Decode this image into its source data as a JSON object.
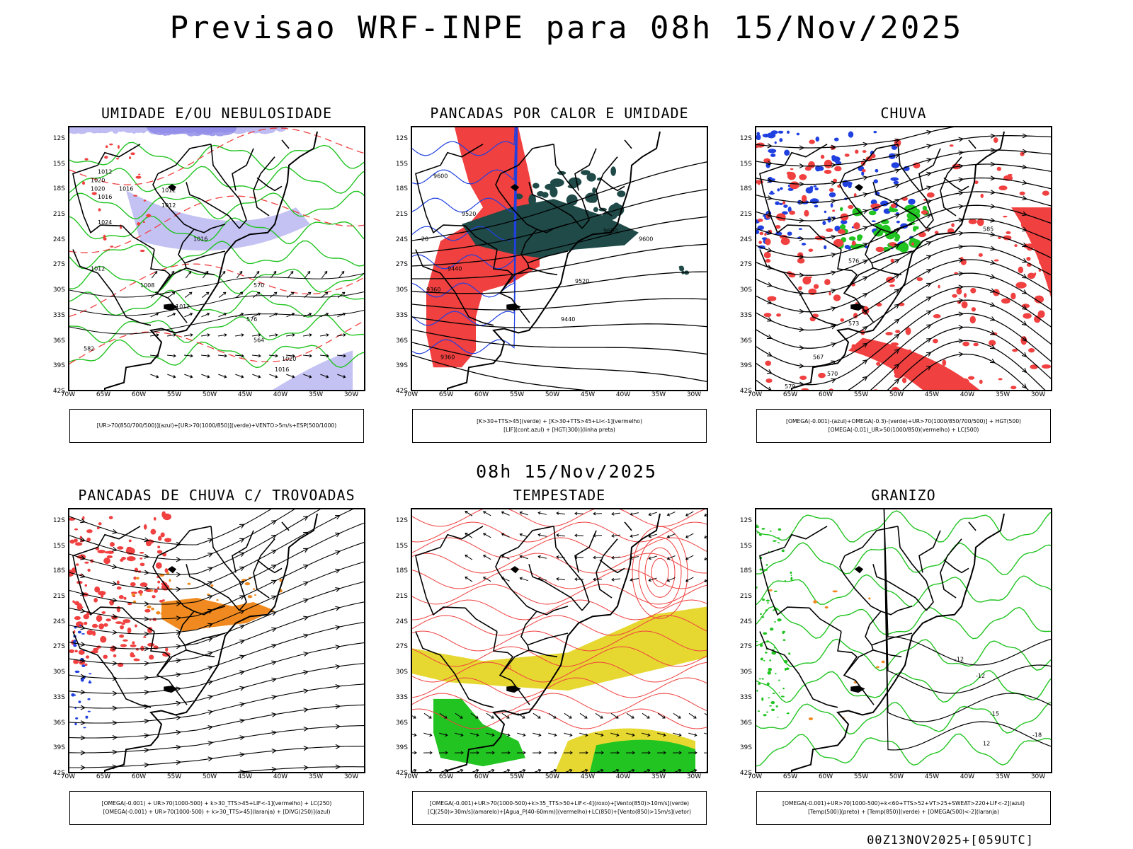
{
  "main_title": "Previsao WRF-INPE  para 08h 15/Nov/2025",
  "mid_title": "08h 15/Nov/2025",
  "footer": "00Z13NOV2025+[059UTC]",
  "lat_ticks": [
    "12S",
    "15S",
    "18S",
    "21S",
    "24S",
    "27S",
    "30S",
    "33S",
    "36S",
    "39S",
    "42S"
  ],
  "lon_ticks": [
    "70W",
    "65W",
    "60W",
    "55W",
    "50W",
    "45W",
    "40W",
    "35W",
    "30W"
  ],
  "panels": [
    {
      "id": "umidade",
      "title": "UMIDADE E/OU NEBULOSIDADE",
      "legend": [
        "[UR>70(850/700/500)](azul)+[UR>70(1000/850)](verde)+VENTO>5m/s+ESP(500/1000)"
      ],
      "contour_labels": [
        "1012",
        "1016",
        "1020",
        "1016",
        "1012",
        "1024",
        "1020",
        "1012",
        "1016",
        "1012",
        "1008",
        "1012",
        "576",
        "570",
        "564",
        "582",
        "1020",
        "1016"
      ]
    },
    {
      "id": "pancadas-calor",
      "title": "PANCADAS POR CALOR E UMIDADE",
      "legend": [
        "[K>30+TTS>45](verde) + [K>30+TTS>45+LI<-1](vermelho)",
        "[LIF](cont.azul) + [HGT(300)](linha preta)"
      ],
      "contour_labels": [
        "9600",
        "9520",
        "9600",
        "9440",
        "9360",
        "9520",
        "9600",
        "9440",
        "9360",
        "-20"
      ]
    },
    {
      "id": "chuva",
      "title": "CHUVA",
      "legend": [
        "[OMEGA(-0.001)-(azul)+OMEGA(-0.3)-(verde)+UR>70(1000/850/700/500)] + HGT(500)",
        "[OMEGA(-0.01)_UR>50(1000/850)(vermelho) + LC(500)"
      ],
      "contour_labels": [
        "585",
        "576",
        "573",
        "570",
        "567",
        "579"
      ]
    },
    {
      "id": "pancadas-trovoadas",
      "title": "PANCADAS DE CHUVA C/ TROVOADAS",
      "legend": [
        "[OMEGA(-0.001) + UR>70(1000-500) + k>30_TTS>45+LIF<-1](vermelho) + LC(250)",
        "[OMEGA(-0.001) + UR>70(1000-500) + k>30_TTS>45](laranja) + [DIVG(250)](azul)"
      ],
      "contour_labels": []
    },
    {
      "id": "tempestade",
      "title": "TEMPESTADE",
      "legend": [
        "[OMEGA(-0.001)+UR>70(1000-500)+k>35_TTS>50+LIF<-4](roxo)+[Vento(850)>10m/s](verde)",
        "[CJ(250)>30m/s](amarelo)+[Agua_P(40-60mm)](vermelho)+LC(850)+[Vento(850)>15m/s](vetor)"
      ],
      "contour_labels": [
        "40"
      ]
    },
    {
      "id": "granizo",
      "title": "GRANIZO",
      "legend": [
        "[OMEGA(-0.001)+UR>70(1000-500)+k<60+TTS>52+VT>25+SWEAT>220+LIF<-2](azul)",
        "[Temp(500)](preto) + [Temp(850)](verde) + [OMEGA(500)<-2](laranja)"
      ],
      "contour_labels": [
        "-12",
        "-15",
        "-18",
        "12",
        "-12"
      ]
    }
  ],
  "colors": {
    "humidity_blue": "#8a86e8",
    "humidity_green": "#22c422",
    "red": "#f04040",
    "dark_teal": "#1f4a48",
    "blue": "#2040e0",
    "orange": "#f08a20",
    "yellow": "#e6d830",
    "green_fill": "#22c422"
  }
}
